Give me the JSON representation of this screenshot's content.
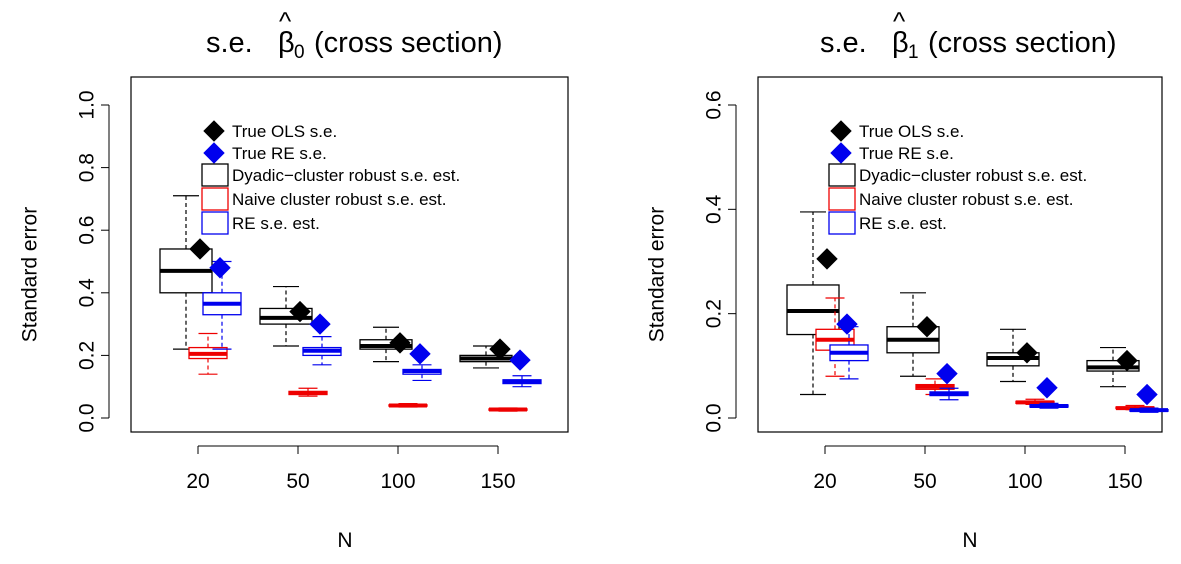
{
  "colors": {
    "ols": "#000000",
    "naive": "#ee0000",
    "re": "#0000ee"
  },
  "x_label": "N",
  "legend": [
    {
      "label": "True OLS s.e.",
      "kind": "diamond",
      "color_key": "ols"
    },
    {
      "label": "True RE s.e.",
      "kind": "diamond",
      "color_key": "re"
    },
    {
      "label": "Dyadic−cluster robust s.e. est.",
      "kind": "box",
      "color_key": "ols"
    },
    {
      "label": "Naive cluster robust s.e. est.",
      "kind": "box",
      "color_key": "naive"
    },
    {
      "label": "RE s.e. est.",
      "kind": "box",
      "color_key": "re"
    }
  ],
  "chart_data": [
    {
      "type": "boxplot",
      "title_prefix": "s.e.",
      "title_symbol": "β",
      "title_hat": "^",
      "title_subscript": "0",
      "title_suffix": "(cross section)",
      "xlabel": "N",
      "ylabel": "Standard error",
      "categories": [
        "20",
        "50",
        "100",
        "150"
      ],
      "ylim": [
        0,
        1.0
      ],
      "yticks": [
        "0.0",
        "0.2",
        "0.4",
        "0.6",
        "0.8",
        "1.0"
      ],
      "legend_placement": "top-left",
      "boxes": {
        "dyadic": [
          {
            "whisker_low": 0.22,
            "q1": 0.4,
            "median": 0.47,
            "q3": 0.54,
            "whisker_high": 0.71
          },
          {
            "whisker_low": 0.23,
            "q1": 0.3,
            "median": 0.32,
            "q3": 0.35,
            "whisker_high": 0.42
          },
          {
            "whisker_low": 0.18,
            "q1": 0.22,
            "median": 0.23,
            "q3": 0.25,
            "whisker_high": 0.29
          },
          {
            "whisker_low": 0.16,
            "q1": 0.18,
            "median": 0.19,
            "q3": 0.2,
            "whisker_high": 0.23
          }
        ],
        "naive": [
          {
            "whisker_low": 0.14,
            "q1": 0.19,
            "median": 0.205,
            "q3": 0.225,
            "whisker_high": 0.27
          },
          {
            "whisker_low": 0.07,
            "q1": 0.075,
            "median": 0.08,
            "q3": 0.085,
            "whisker_high": 0.095
          },
          {
            "whisker_low": 0.035,
            "q1": 0.038,
            "median": 0.04,
            "q3": 0.042,
            "whisker_high": 0.046
          },
          {
            "whisker_low": 0.022,
            "q1": 0.025,
            "median": 0.027,
            "q3": 0.029,
            "whisker_high": 0.032
          }
        ],
        "re": [
          {
            "whisker_low": 0.22,
            "q1": 0.33,
            "median": 0.365,
            "q3": 0.4,
            "whisker_high": 0.5
          },
          {
            "whisker_low": 0.17,
            "q1": 0.2,
            "median": 0.215,
            "q3": 0.225,
            "whisker_high": 0.26
          },
          {
            "whisker_low": 0.12,
            "q1": 0.14,
            "median": 0.15,
            "q3": 0.155,
            "whisker_high": 0.17
          },
          {
            "whisker_low": 0.1,
            "q1": 0.11,
            "median": 0.117,
            "q3": 0.122,
            "whisker_high": 0.135
          }
        ]
      },
      "true_ols_se": [
        0.54,
        0.34,
        0.24,
        0.22
      ],
      "true_re_se": [
        0.48,
        0.3,
        0.205,
        0.185
      ]
    },
    {
      "type": "boxplot",
      "title_prefix": "s.e.",
      "title_symbol": "β",
      "title_hat": "^",
      "title_subscript": "1",
      "title_suffix": "(cross section)",
      "xlabel": "N",
      "ylabel": "Standard error",
      "categories": [
        "20",
        "50",
        "100",
        "150"
      ],
      "ylim": [
        0,
        0.6
      ],
      "yticks": [
        "0.0",
        "0.2",
        "0.4",
        "0.6"
      ],
      "legend_placement": "top-left",
      "boxes": {
        "dyadic": [
          {
            "whisker_low": 0.045,
            "q1": 0.16,
            "median": 0.205,
            "q3": 0.255,
            "whisker_high": 0.395
          },
          {
            "whisker_low": 0.08,
            "q1": 0.125,
            "median": 0.15,
            "q3": 0.175,
            "whisker_high": 0.24
          },
          {
            "whisker_low": 0.07,
            "q1": 0.1,
            "median": 0.115,
            "q3": 0.125,
            "whisker_high": 0.17
          },
          {
            "whisker_low": 0.06,
            "q1": 0.09,
            "median": 0.097,
            "q3": 0.11,
            "whisker_high": 0.135
          }
        ],
        "naive": [
          {
            "whisker_low": 0.08,
            "q1": 0.13,
            "median": 0.15,
            "q3": 0.17,
            "whisker_high": 0.23
          },
          {
            "whisker_low": 0.045,
            "q1": 0.055,
            "median": 0.06,
            "q3": 0.064,
            "whisker_high": 0.075
          },
          {
            "whisker_low": 0.026,
            "q1": 0.028,
            "median": 0.03,
            "q3": 0.032,
            "whisker_high": 0.036
          },
          {
            "whisker_low": 0.016,
            "q1": 0.018,
            "median": 0.019,
            "q3": 0.021,
            "whisker_high": 0.024
          }
        ],
        "re": [
          {
            "whisker_low": 0.075,
            "q1": 0.11,
            "median": 0.125,
            "q3": 0.14,
            "whisker_high": 0.175
          },
          {
            "whisker_low": 0.035,
            "q1": 0.043,
            "median": 0.047,
            "q3": 0.05,
            "whisker_high": 0.057
          },
          {
            "whisker_low": 0.019,
            "q1": 0.021,
            "median": 0.023,
            "q3": 0.025,
            "whisker_high": 0.028
          },
          {
            "whisker_low": 0.011,
            "q1": 0.013,
            "median": 0.015,
            "q3": 0.016,
            "whisker_high": 0.019
          }
        ]
      },
      "true_ols_se": [
        0.305,
        0.175,
        0.125,
        0.11
      ],
      "true_re_se": [
        0.18,
        0.085,
        0.058,
        0.045
      ]
    }
  ]
}
